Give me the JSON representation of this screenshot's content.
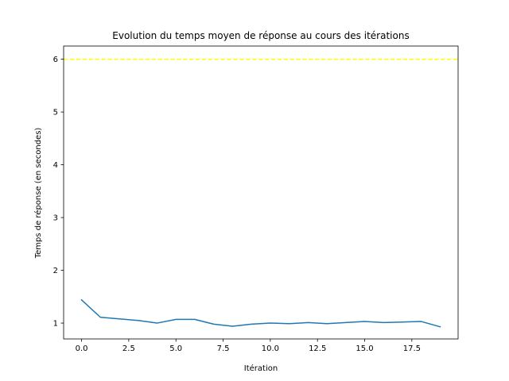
{
  "chart_data": {
    "type": "line",
    "title": "Evolution du temps moyen de réponse au cours des itérations",
    "xlabel": "Itération",
    "ylabel": "Temps de réponse (en secondes)",
    "xlim": [
      -0.95,
      19.95
    ],
    "ylim": [
      0.7,
      6.25
    ],
    "xticks": [
      0.0,
      2.5,
      5.0,
      7.5,
      10.0,
      12.5,
      15.0,
      17.5
    ],
    "xtick_labels": [
      "0.0",
      "2.5",
      "5.0",
      "7.5",
      "10.0",
      "12.5",
      "15.0",
      "17.5"
    ],
    "yticks": [
      1,
      2,
      3,
      4,
      5,
      6
    ],
    "ytick_labels": [
      "1",
      "2",
      "3",
      "4",
      "5",
      "6"
    ],
    "grid": false,
    "series": [
      {
        "color": "#1f77b4",
        "style": "solid",
        "x": [
          0,
          1,
          2,
          3,
          4,
          5,
          6,
          7,
          8,
          9,
          10,
          11,
          12,
          13,
          14,
          15,
          16,
          17,
          18,
          19
        ],
        "values": [
          1.44,
          1.11,
          1.08,
          1.05,
          1.0,
          1.07,
          1.07,
          0.98,
          0.94,
          0.98,
          1.0,
          0.99,
          1.01,
          0.99,
          1.01,
          1.03,
          1.01,
          1.02,
          1.03,
          0.93
        ]
      }
    ],
    "reference_lines": [
      {
        "y": 6.0,
        "color": "#ffff00",
        "style": "dashed"
      }
    ]
  }
}
